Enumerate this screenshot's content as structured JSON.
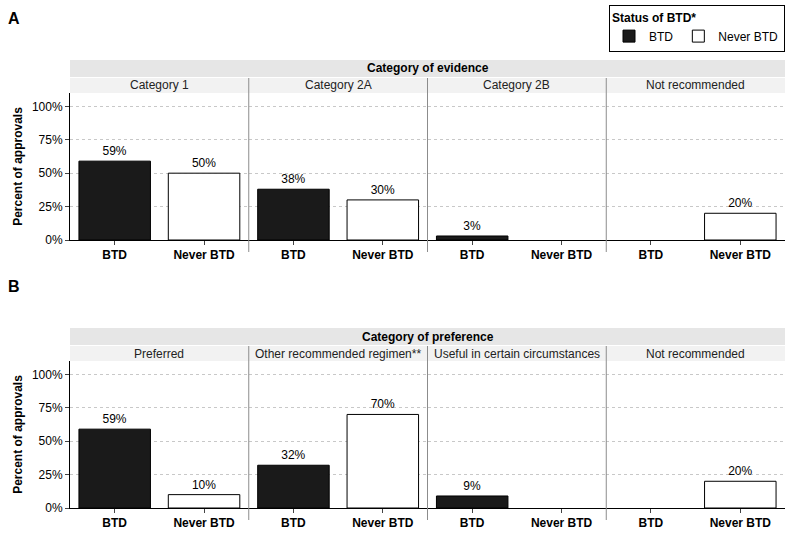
{
  "chart_data": [
    {
      "type": "bar",
      "panel": "A",
      "title": "Category of evidence",
      "legend": "upper right",
      "legend_title": "Status of BTD*",
      "ylabel": "Percent of approvals",
      "categories": [
        "Category 1",
        "Category 2A",
        "Category 2B",
        "Not recommended"
      ],
      "series": [
        {
          "name": "BTD",
          "color": "#1a1a1a",
          "values": [
            59,
            38,
            3,
            null
          ],
          "value_labels": [
            "59%",
            "38%",
            "3%",
            null
          ]
        },
        {
          "name": "Never BTD",
          "color": "#ffffff",
          "values": [
            50,
            30,
            null,
            20
          ],
          "value_labels": [
            "50%",
            "30%",
            null,
            "20%"
          ]
        }
      ],
      "ylim": [
        0,
        110
      ],
      "yticks": [
        {
          "value": 0,
          "label": "0%"
        },
        {
          "value": 25,
          "label": "25%"
        },
        {
          "value": 50,
          "label": "50%"
        },
        {
          "value": 75,
          "label": "75%"
        },
        {
          "value": 100,
          "label": "100%"
        }
      ],
      "grid": true,
      "data_labels": true
    },
    {
      "type": "bar",
      "panel": "B",
      "title": "Category of preference",
      "ylabel": "Percent of approvals",
      "categories": [
        "Preferred",
        "Other recommended regimen**",
        "Useful in certain circumstances",
        "Not recommended"
      ],
      "series": [
        {
          "name": "BTD",
          "color": "#1a1a1a",
          "values": [
            59,
            32,
            9,
            null
          ],
          "value_labels": [
            "59%",
            "32%",
            "9%",
            null
          ]
        },
        {
          "name": "Never BTD",
          "color": "#ffffff",
          "values": [
            10,
            70,
            null,
            20
          ],
          "value_labels": [
            "10%",
            "70%",
            null,
            "20%"
          ]
        }
      ],
      "ylim": [
        0,
        110
      ],
      "yticks": [
        {
          "value": 0,
          "label": "0%"
        },
        {
          "value": 25,
          "label": "25%"
        },
        {
          "value": 50,
          "label": "50%"
        },
        {
          "value": 75,
          "label": "75%"
        },
        {
          "value": 100,
          "label": "100%"
        }
      ],
      "grid": true,
      "data_labels": true
    }
  ]
}
